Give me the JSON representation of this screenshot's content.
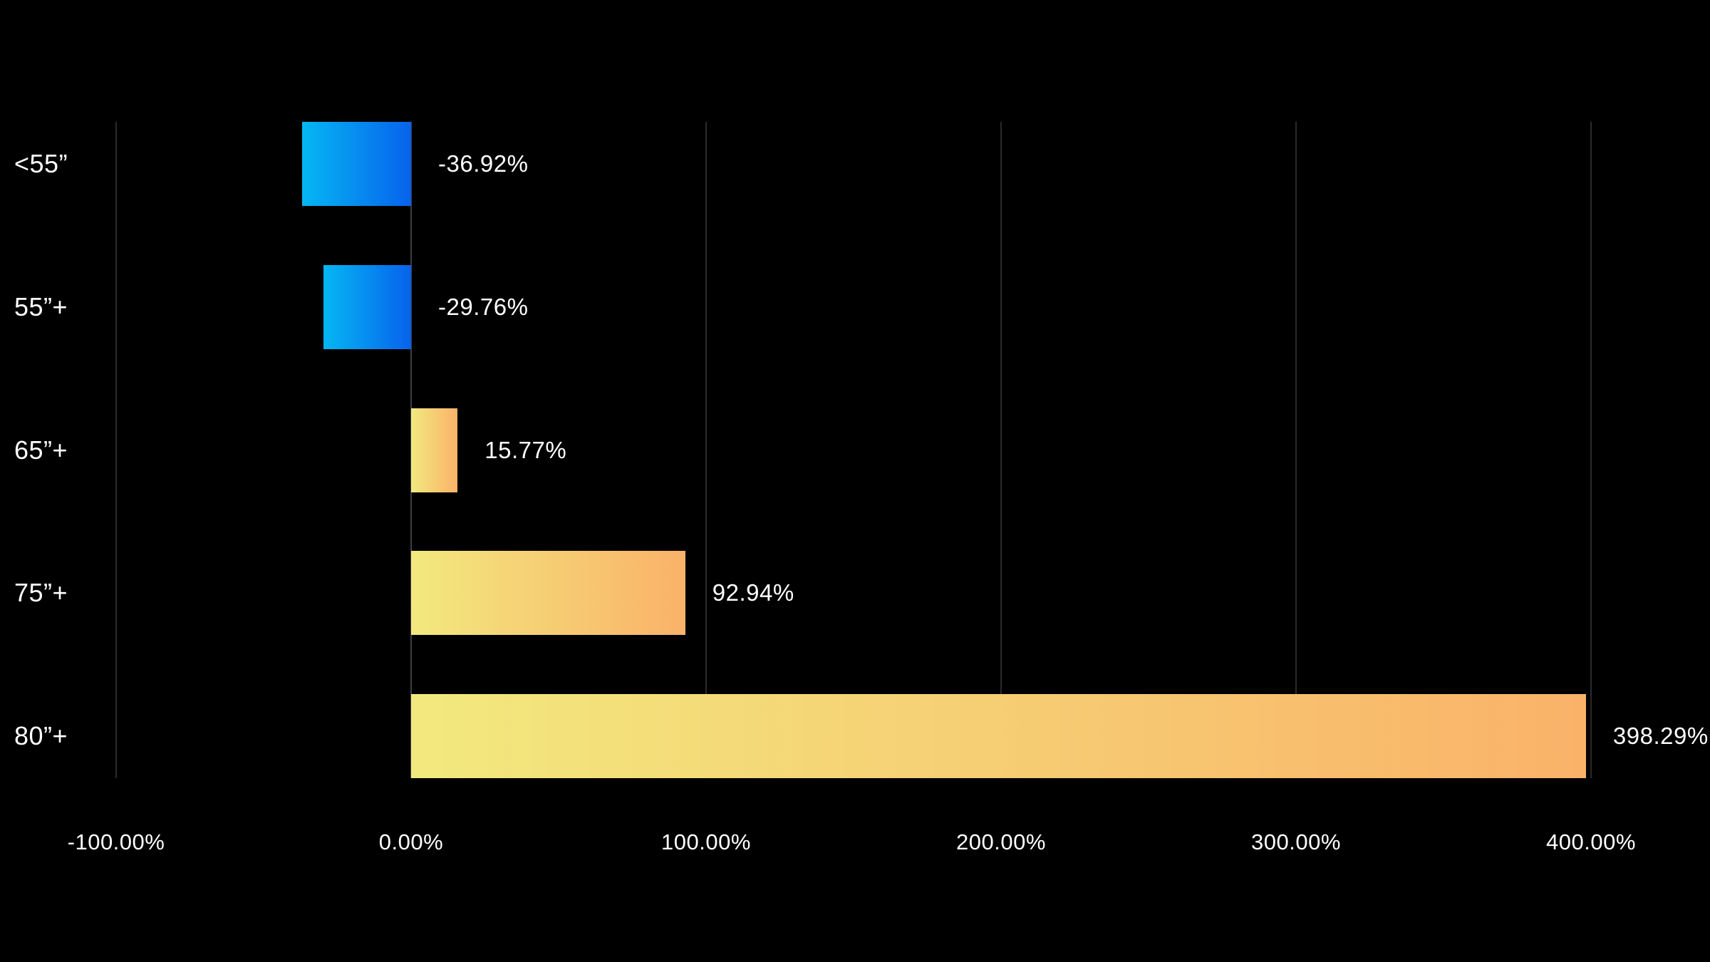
{
  "chart_data": {
    "type": "bar",
    "orientation": "horizontal",
    "title": "",
    "xlabel": "",
    "ylabel": "",
    "categories": [
      "<55”",
      "55”+",
      "65”+",
      "75”+",
      "80”+"
    ],
    "series": [
      {
        "name": "percent-change",
        "values": [
          -36.92,
          -29.76,
          15.77,
          92.94,
          398.29
        ],
        "value_labels": [
          "-36.92%",
          "-29.76%",
          "15.77%",
          "92.94%",
          "398.29%"
        ]
      }
    ],
    "x_ticks": [
      -100,
      0,
      100,
      200,
      300,
      400
    ],
    "x_tick_labels": [
      "-100.00%",
      "0.00%",
      "100.00%",
      "200.00%",
      "300.00%",
      "400.00%"
    ],
    "xlim": [
      -100,
      400
    ],
    "grid": "vertical-gridlines-on",
    "legend": "none",
    "colors": {
      "background": "#000000",
      "gridline": "#2b2b2b",
      "zero_line": "#3f3f3f",
      "text": "#ffffff",
      "negative_bar_gradient_start": "#05b7f3",
      "negative_bar_gradient_end": "#0762ec",
      "positive_bar_gradient_start": "#f2e97e",
      "positive_bar_gradient_end": "#fab269"
    }
  }
}
